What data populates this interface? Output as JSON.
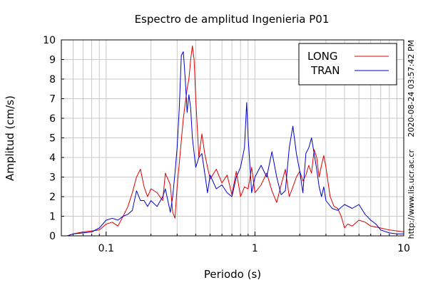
{
  "chart_data": {
    "type": "line",
    "title": "Espectro de amplitud Ingenieria P01",
    "xlabel": "Periodo (s)",
    "ylabel": "Amplitud (cm/s)",
    "xscale": "log",
    "xlim": [
      0.05,
      10
    ],
    "ylim": [
      0,
      10
    ],
    "x_ticks": [
      0.1,
      1,
      10
    ],
    "x_tick_labels": [
      "0.1",
      "1",
      "10"
    ],
    "y_ticks": [
      0,
      1,
      2,
      3,
      4,
      5,
      6,
      7,
      8,
      9,
      10
    ],
    "y_tick_labels": [
      "0",
      "1",
      "2",
      "3",
      "4",
      "5",
      "6",
      "7",
      "8",
      "9",
      "10"
    ],
    "grid": true,
    "legend_position": "top-right",
    "side_text": [
      "2020-08-24 03:57:42 PM",
      "http://www.lis.ucr.ac.cr"
    ],
    "series": [
      {
        "name": "LONG",
        "color": "#dd0000",
        "x": [
          0.055,
          0.06,
          0.07,
          0.08,
          0.09,
          0.1,
          0.11,
          0.12,
          0.13,
          0.14,
          0.15,
          0.16,
          0.17,
          0.18,
          0.19,
          0.2,
          0.22,
          0.24,
          0.25,
          0.27,
          0.28,
          0.29,
          0.3,
          0.31,
          0.33,
          0.35,
          0.36,
          0.37,
          0.38,
          0.39,
          0.4,
          0.42,
          0.44,
          0.46,
          0.48,
          0.5,
          0.55,
          0.6,
          0.65,
          0.7,
          0.75,
          0.8,
          0.85,
          0.9,
          0.95,
          1.0,
          1.1,
          1.2,
          1.3,
          1.4,
          1.5,
          1.6,
          1.7,
          1.8,
          1.9,
          2.0,
          2.1,
          2.2,
          2.3,
          2.4,
          2.5,
          2.6,
          2.7,
          2.8,
          2.9,
          3.0,
          3.2,
          3.4,
          3.6,
          3.8,
          4.0,
          4.2,
          4.5,
          5.0,
          5.5,
          6.0,
          7.0,
          8.0,
          9.0,
          10.0
        ],
        "y": [
          0.0,
          0.1,
          0.2,
          0.25,
          0.3,
          0.6,
          0.7,
          0.5,
          1.0,
          1.5,
          2.2,
          3.0,
          3.4,
          2.5,
          2.0,
          2.4,
          2.2,
          1.8,
          3.2,
          2.6,
          1.2,
          0.9,
          2.5,
          3.7,
          6.0,
          7.5,
          8.0,
          9.0,
          9.7,
          9.0,
          7.0,
          4.0,
          5.2,
          4.2,
          3.5,
          2.9,
          3.4,
          2.7,
          3.1,
          2.1,
          3.3,
          2.0,
          2.5,
          2.4,
          3.5,
          2.2,
          2.6,
          3.2,
          2.3,
          1.7,
          2.6,
          3.4,
          2.0,
          2.5,
          3.0,
          3.3,
          2.8,
          3.1,
          3.6,
          3.2,
          4.4,
          4.0,
          3.0,
          3.6,
          4.1,
          3.5,
          2.0,
          1.5,
          1.4,
          1.0,
          0.4,
          0.6,
          0.5,
          0.8,
          0.7,
          0.5,
          0.4,
          0.3,
          0.25,
          0.2
        ]
      },
      {
        "name": "TRAN",
        "color": "#0000cc",
        "x": [
          0.055,
          0.06,
          0.07,
          0.08,
          0.09,
          0.1,
          0.11,
          0.12,
          0.13,
          0.14,
          0.15,
          0.16,
          0.17,
          0.18,
          0.19,
          0.2,
          0.22,
          0.24,
          0.25,
          0.27,
          0.28,
          0.29,
          0.3,
          0.31,
          0.32,
          0.33,
          0.34,
          0.35,
          0.36,
          0.37,
          0.38,
          0.4,
          0.42,
          0.44,
          0.46,
          0.48,
          0.5,
          0.55,
          0.6,
          0.65,
          0.7,
          0.75,
          0.8,
          0.85,
          0.88,
          0.9,
          0.95,
          1.0,
          1.1,
          1.2,
          1.3,
          1.4,
          1.5,
          1.6,
          1.7,
          1.8,
          1.9,
          2.0,
          2.1,
          2.2,
          2.3,
          2.4,
          2.5,
          2.6,
          2.7,
          2.8,
          2.9,
          3.0,
          3.3,
          3.6,
          4.0,
          4.5,
          5.0,
          5.5,
          6.0,
          6.5,
          7.0,
          8.0,
          9.0,
          10.0
        ],
        "y": [
          0.0,
          0.1,
          0.15,
          0.2,
          0.4,
          0.8,
          0.9,
          0.8,
          1.0,
          1.1,
          1.3,
          2.3,
          1.8,
          1.8,
          1.5,
          1.8,
          1.5,
          2.0,
          2.4,
          1.2,
          2.0,
          3.2,
          4.5,
          6.5,
          9.2,
          9.4,
          8.0,
          6.3,
          7.2,
          6.5,
          5.0,
          3.5,
          4.0,
          4.2,
          3.2,
          2.2,
          3.1,
          2.4,
          2.6,
          2.2,
          2.0,
          3.0,
          3.5,
          4.5,
          6.8,
          5.0,
          2.2,
          3.0,
          3.6,
          3.0,
          4.3,
          3.0,
          2.1,
          2.3,
          4.5,
          5.6,
          4.2,
          3.3,
          2.2,
          4.2,
          4.5,
          5.0,
          4.2,
          3.4,
          2.5,
          2.0,
          2.5,
          1.8,
          1.4,
          1.3,
          1.6,
          1.4,
          1.6,
          1.1,
          0.8,
          0.6,
          0.3,
          0.15,
          0.1,
          0.1
        ]
      }
    ]
  }
}
